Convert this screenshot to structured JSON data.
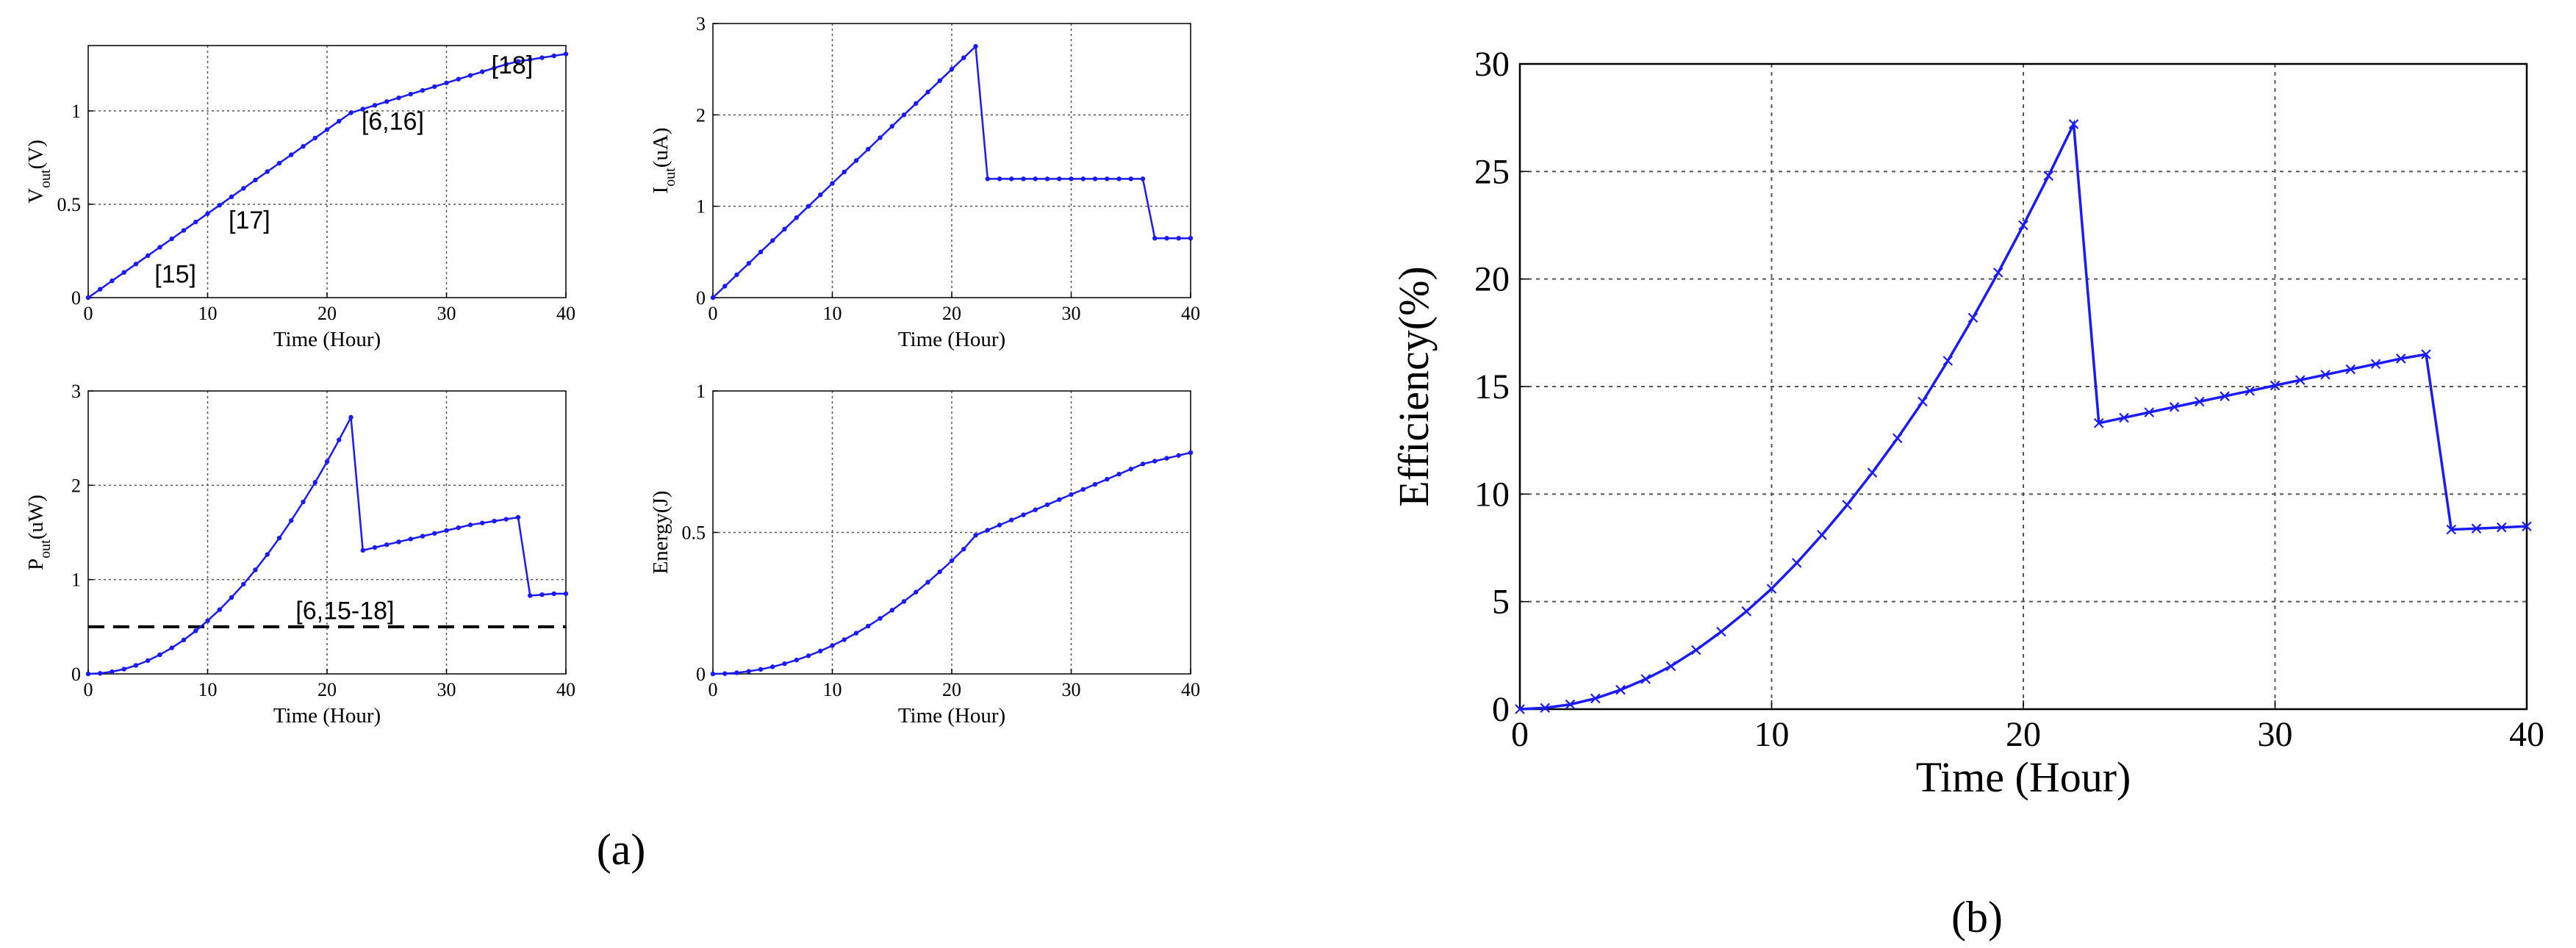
{
  "colors": {
    "series": "#1a1aff",
    "grid": "#555555",
    "dashed_line": "#000000",
    "axis": "#000000"
  },
  "captions": {
    "a": "(a)",
    "b": "(b)"
  },
  "chart_data": [
    {
      "id": "vout",
      "type": "line",
      "xlabel": "Time (Hour)",
      "ylabel_main": "V",
      "ylabel_sub": "out",
      "ylabel_unit": "(V)",
      "xlim": [
        0,
        40
      ],
      "ylim": [
        0,
        1.35
      ],
      "xticks": [
        0,
        10,
        20,
        30,
        40
      ],
      "yticks": [
        0,
        0.5,
        1
      ],
      "ytick_labels": [
        "0",
        "0.5",
        "1"
      ],
      "grid": true,
      "annotations": [
        {
          "text": "[15]",
          "x": 7.3,
          "y": 0.08
        },
        {
          "text": "[17]",
          "x": 13.5,
          "y": 0.37
        },
        {
          "text": "[6,16]",
          "x": 25.5,
          "y": 0.9
        },
        {
          "text": "[18]",
          "x": 35.5,
          "y": 1.2
        }
      ],
      "series": [
        {
          "x": [
            0,
            1,
            2,
            3,
            4,
            5,
            6,
            7,
            8,
            9,
            10,
            11,
            12,
            13,
            14,
            15,
            16,
            17,
            18,
            19,
            20,
            21,
            22,
            23,
            24,
            25,
            26,
            27,
            28,
            29,
            30,
            31,
            32,
            33,
            34,
            35,
            36,
            37,
            38,
            39,
            40
          ],
          "y": [
            0,
            0.045,
            0.09,
            0.135,
            0.18,
            0.225,
            0.27,
            0.315,
            0.36,
            0.405,
            0.45,
            0.495,
            0.54,
            0.585,
            0.63,
            0.675,
            0.72,
            0.765,
            0.81,
            0.855,
            0.9,
            0.945,
            0.99,
            1.01,
            1.03,
            1.05,
            1.07,
            1.09,
            1.11,
            1.13,
            1.15,
            1.17,
            1.19,
            1.21,
            1.23,
            1.25,
            1.265,
            1.275,
            1.285,
            1.295,
            1.305
          ]
        }
      ]
    },
    {
      "id": "iout",
      "type": "line",
      "xlabel": "Time (Hour)",
      "ylabel_main": "I",
      "ylabel_sub": "out",
      "ylabel_unit": "(uA)",
      "xlim": [
        0,
        40
      ],
      "ylim": [
        0,
        3
      ],
      "xticks": [
        0,
        10,
        20,
        30,
        40
      ],
      "yticks": [
        0,
        1,
        2,
        3
      ],
      "ytick_labels": [
        "0",
        "1",
        "2",
        "3"
      ],
      "grid": true,
      "series": [
        {
          "x": [
            0,
            1,
            2,
            3,
            4,
            5,
            6,
            7,
            8,
            9,
            10,
            11,
            12,
            13,
            14,
            15,
            16,
            17,
            18,
            19,
            20,
            21,
            22,
            23,
            24,
            25,
            26,
            27,
            28,
            29,
            30,
            31,
            32,
            33,
            34,
            35,
            36,
            37,
            38,
            39,
            40
          ],
          "y": [
            0,
            0.125,
            0.25,
            0.375,
            0.5,
            0.625,
            0.75,
            0.875,
            1.0,
            1.125,
            1.25,
            1.375,
            1.5,
            1.625,
            1.75,
            1.875,
            2.0,
            2.125,
            2.25,
            2.375,
            2.5,
            2.625,
            2.75,
            1.3,
            1.3,
            1.3,
            1.3,
            1.3,
            1.3,
            1.3,
            1.3,
            1.3,
            1.3,
            1.3,
            1.3,
            1.3,
            1.3,
            0.65,
            0.65,
            0.65,
            0.65
          ]
        }
      ]
    },
    {
      "id": "pout",
      "type": "line",
      "xlabel": "Time (Hour)",
      "ylabel_main": "P",
      "ylabel_sub": "out",
      "ylabel_unit": "(uW)",
      "xlim": [
        0,
        40
      ],
      "ylim": [
        0,
        3
      ],
      "xticks": [
        0,
        10,
        20,
        30,
        40
      ],
      "yticks": [
        0,
        1,
        2,
        3
      ],
      "ytick_labels": [
        "0",
        "1",
        "2",
        "3"
      ],
      "grid": true,
      "hline": {
        "y": 0.5,
        "label": "[6,15-18]",
        "label_x": 21.5,
        "label_y": 0.58
      },
      "series": [
        {
          "x": [
            0,
            1,
            2,
            3,
            4,
            5,
            6,
            7,
            8,
            9,
            10,
            11,
            12,
            13,
            14,
            15,
            16,
            17,
            18,
            19,
            20,
            21,
            22,
            23,
            24,
            25,
            26,
            27,
            28,
            29,
            30,
            31,
            32,
            33,
            34,
            35,
            36,
            37,
            38,
            39,
            40
          ],
          "y": [
            0,
            0.006,
            0.023,
            0.051,
            0.09,
            0.141,
            0.203,
            0.276,
            0.36,
            0.456,
            0.563,
            0.681,
            0.81,
            0.951,
            1.103,
            1.266,
            1.44,
            1.626,
            1.823,
            2.031,
            2.25,
            2.481,
            2.72,
            1.31,
            1.34,
            1.37,
            1.4,
            1.43,
            1.46,
            1.49,
            1.52,
            1.55,
            1.58,
            1.6,
            1.62,
            1.64,
            1.66,
            0.83,
            0.84,
            0.85,
            0.85
          ]
        }
      ]
    },
    {
      "id": "energy",
      "type": "line",
      "xlabel": "Time (Hour)",
      "ylabel": "Energy(J)",
      "xlim": [
        0,
        40
      ],
      "ylim": [
        0,
        1
      ],
      "xticks": [
        0,
        10,
        20,
        30,
        40
      ],
      "yticks": [
        0,
        0.5,
        1
      ],
      "ytick_labels": [
        "0",
        "0.5",
        "1"
      ],
      "grid": true,
      "series": [
        {
          "x": [
            0,
            1,
            2,
            3,
            4,
            5,
            6,
            7,
            8,
            9,
            10,
            11,
            12,
            13,
            14,
            15,
            16,
            17,
            18,
            19,
            20,
            21,
            22,
            23,
            24,
            25,
            26,
            27,
            28,
            29,
            30,
            31,
            32,
            33,
            34,
            35,
            36,
            37,
            38,
            39,
            40
          ],
          "y": [
            0,
            0.001,
            0.004,
            0.009,
            0.016,
            0.025,
            0.036,
            0.049,
            0.064,
            0.081,
            0.1,
            0.121,
            0.144,
            0.169,
            0.196,
            0.225,
            0.256,
            0.289,
            0.324,
            0.361,
            0.4,
            0.441,
            0.49,
            0.508,
            0.526,
            0.544,
            0.562,
            0.58,
            0.598,
            0.616,
            0.634,
            0.652,
            0.67,
            0.688,
            0.706,
            0.724,
            0.742,
            0.752,
            0.762,
            0.772,
            0.782
          ]
        }
      ]
    },
    {
      "id": "efficiency",
      "type": "line",
      "xlabel": "Time (Hour)",
      "ylabel": "Efficiency(%)",
      "xlim": [
        0,
        40
      ],
      "ylim": [
        0,
        30
      ],
      "xticks": [
        0,
        10,
        20,
        30,
        40
      ],
      "yticks": [
        0,
        5,
        10,
        15,
        20,
        25,
        30
      ],
      "ytick_labels": [
        "0",
        "5",
        "10",
        "15",
        "20",
        "25",
        "30"
      ],
      "grid": true,
      "series": [
        {
          "x": [
            0,
            1,
            2,
            3,
            4,
            5,
            6,
            7,
            8,
            9,
            10,
            11,
            12,
            13,
            14,
            15,
            16,
            17,
            18,
            19,
            20,
            21,
            22,
            23,
            24,
            25,
            26,
            27,
            28,
            29,
            30,
            31,
            32,
            33,
            34,
            35,
            36,
            37,
            38,
            39,
            40
          ],
          "y": [
            0,
            0.06,
            0.22,
            0.5,
            0.9,
            1.4,
            2.0,
            2.75,
            3.6,
            4.55,
            5.6,
            6.8,
            8.1,
            9.5,
            11.0,
            12.6,
            14.3,
            16.2,
            18.2,
            20.3,
            22.5,
            24.8,
            27.2,
            13.3,
            13.55,
            13.8,
            14.05,
            14.3,
            14.55,
            14.8,
            15.05,
            15.3,
            15.55,
            15.8,
            16.05,
            16.3,
            16.5,
            8.35,
            8.4,
            8.45,
            8.5
          ]
        }
      ]
    }
  ]
}
